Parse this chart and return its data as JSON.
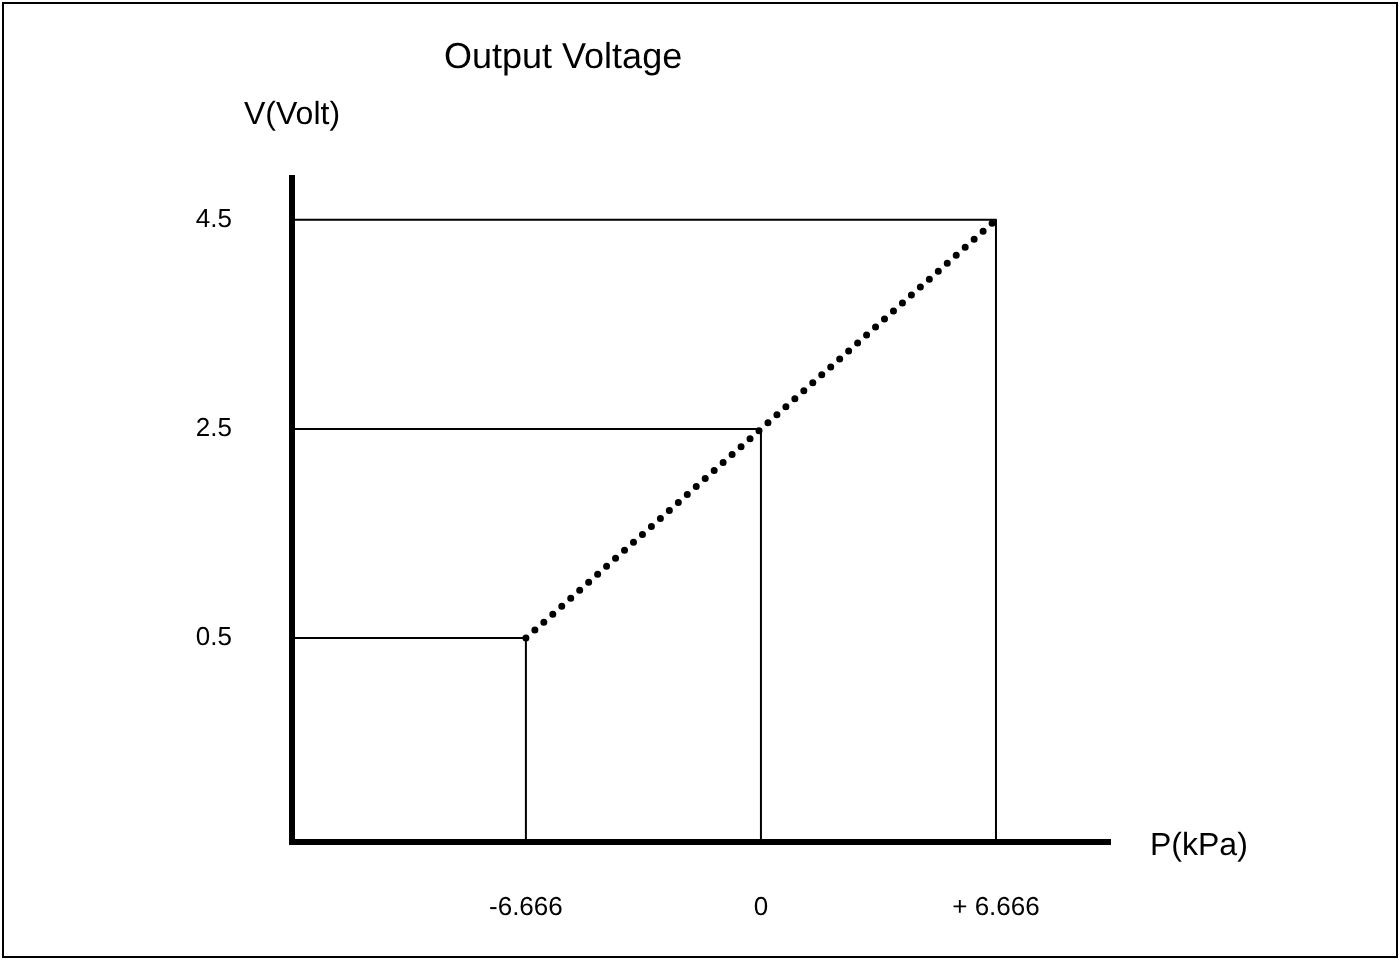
{
  "chart_data": {
    "type": "line",
    "title": "Output Voltage",
    "xlabel": "P(kPa)",
    "ylabel": "V(Volt)",
    "xlim": [
      -13.3,
      9.9
    ],
    "ylim": [
      -1.45,
      4.9
    ],
    "xticks": [
      {
        "value": -6.666,
        "label": "-6.666"
      },
      0,
      {
        "value": 6.666,
        "label": "+ 6.666"
      }
    ],
    "yticks": [
      0.5,
      2.5,
      4.5
    ],
    "grid": false,
    "legend": false,
    "marker": "none",
    "series": [
      {
        "color": "#000000",
        "line_style": "dotted",
        "x": [
          -6.666,
          0,
          6.666
        ],
        "values": [
          0.5,
          2.5,
          4.5
        ]
      },
      {
        "color": "#000000",
        "line_style": "solid",
        "x": [
          -13.3,
          -6.666,
          -6.666
        ],
        "values": [
          0.5,
          0.5,
          -1.45
        ]
      },
      {
        "color": "#000000",
        "line_style": "solid",
        "x": [
          -13.3,
          0,
          0
        ],
        "values": [
          2.5,
          2.5,
          -1.45
        ]
      },
      {
        "color": "#000000",
        "line_style": "solid",
        "x": [
          -13.3,
          6.666,
          6.666
        ],
        "values": [
          4.5,
          4.5,
          -1.45
        ]
      }
    ]
  }
}
